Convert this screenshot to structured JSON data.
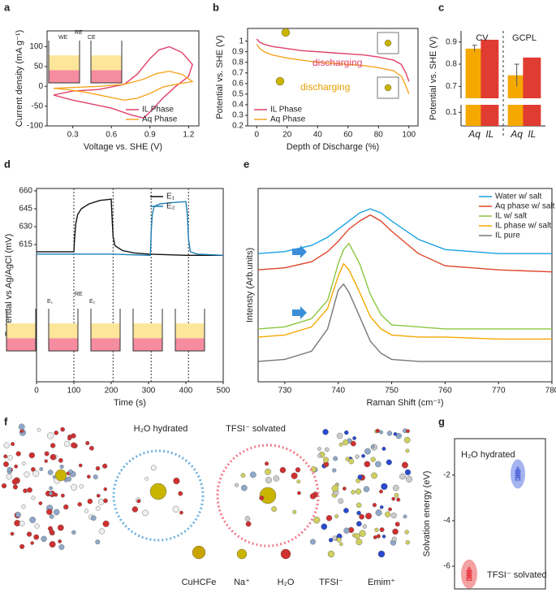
{
  "chart_data": [
    {
      "panel": "a",
      "type": "line",
      "xlabel": "Voltage vs. SHE (V)",
      "ylabel": "Current density (mA g⁻¹)",
      "xlim": [
        0.1,
        1.28
      ],
      "xticks": [
        0.3,
        0.6,
        0.9,
        1.2
      ],
      "ylim": [
        -100,
        140
      ],
      "yticks": [
        -100,
        -50,
        0,
        50,
        100
      ],
      "legend": "lower right",
      "annotations": [
        "WE",
        "RE",
        "CE"
      ],
      "series": [
        {
          "name": "IL Phase",
          "color": "#e0406a",
          "x": [
            0.15,
            0.3,
            0.5,
            0.7,
            0.8,
            0.9,
            0.97,
            1.05,
            1.15,
            1.23,
            1.2,
            1.1,
            1.0,
            0.9,
            0.85,
            0.75,
            0.6,
            0.45,
            0.3,
            0.15
          ],
          "values": [
            -22,
            -12,
            -8,
            5,
            30,
            70,
            92,
            100,
            85,
            55,
            25,
            0,
            -30,
            -65,
            -80,
            -72,
            -55,
            -45,
            -35,
            -22
          ]
        },
        {
          "name": "Aq Phase",
          "color": "#f5a623",
          "x": [
            0.15,
            0.3,
            0.5,
            0.7,
            0.85,
            0.95,
            1.05,
            1.15,
            1.23,
            1.1,
            1.0,
            0.9,
            0.8,
            0.7,
            0.55,
            0.4,
            0.25,
            0.15
          ],
          "values": [
            -5,
            -3,
            0,
            5,
            18,
            32,
            38,
            30,
            12,
            5,
            -2,
            -18,
            -30,
            -35,
            -25,
            -15,
            -8,
            -5
          ]
        }
      ]
    },
    {
      "panel": "b",
      "type": "line",
      "xlabel": "Depth of Discharge (%)",
      "ylabel": "Potential vs. SHE (V)",
      "xlim": [
        -6,
        106
      ],
      "xticks": [
        0,
        20,
        40,
        60,
        80,
        100
      ],
      "ylim": [
        0.2,
        1.12
      ],
      "yticks": [
        0.2,
        0.3,
        0.4,
        0.5,
        0.6,
        0.7,
        0.8,
        0.9,
        1.0
      ],
      "legend": "lower left",
      "annotations": [
        "discharging",
        "discharging"
      ],
      "x": [
        0,
        2,
        5,
        10,
        20,
        30,
        40,
        50,
        60,
        70,
        80,
        90,
        95,
        98,
        100
      ],
      "series": [
        {
          "name": "IL Phase",
          "color": "#e0406a",
          "values": [
            1.02,
            0.99,
            0.97,
            0.95,
            0.93,
            0.91,
            0.9,
            0.89,
            0.88,
            0.87,
            0.85,
            0.82,
            0.78,
            0.7,
            0.62
          ]
        },
        {
          "name": "Aq Phase",
          "color": "#f5a623",
          "values": [
            0.97,
            0.93,
            0.9,
            0.87,
            0.84,
            0.82,
            0.8,
            0.79,
            0.78,
            0.77,
            0.75,
            0.72,
            0.67,
            0.58,
            0.5
          ]
        }
      ]
    },
    {
      "panel": "c",
      "type": "bar",
      "ylabel": "Potential vs. SHE (V)",
      "groups": [
        "CV",
        "GCPL"
      ],
      "categories": [
        "Aq",
        "IL",
        "Aq",
        "IL"
      ],
      "values": [
        0.87,
        0.91,
        0.75,
        0.83
      ],
      "errors": [
        0.015,
        null,
        0.05,
        null
      ],
      "colors": [
        "#f5a800",
        "#e03c31",
        "#f5a800",
        "#e03c31"
      ],
      "ylim": [
        0,
        0.95
      ],
      "yticks": [
        0.1,
        0.7,
        0.8,
        0.9
      ],
      "axis_break": [
        0.15,
        0.65
      ]
    },
    {
      "panel": "d",
      "type": "line",
      "xlabel": "Time (s)",
      "ylabel": "Potential vs Ag/AgCl (mV)",
      "xlim": [
        0,
        500
      ],
      "xticks": [
        0,
        100,
        200,
        300,
        400,
        500
      ],
      "ylim": [
        500,
        662
      ],
      "yticks": [
        615,
        630,
        645,
        660
      ],
      "legend": "upper right",
      "event_times": [
        100,
        205,
        307,
        407
      ],
      "annotations": [
        "RE",
        "E₁",
        "E₂"
      ],
      "series": [
        {
          "name": "E₁",
          "color": "#111111",
          "x": [
            0,
            100,
            102,
            105,
            110,
            120,
            140,
            170,
            200,
            202,
            205,
            210,
            230,
            260,
            300,
            400,
            500
          ],
          "values": [
            609,
            609,
            620,
            632,
            640,
            645,
            649,
            652,
            653,
            640,
            622,
            614,
            610,
            608,
            607,
            606,
            606
          ]
        },
        {
          "name": "E₂",
          "color": "#1b7fb5",
          "x": [
            0,
            100,
            200,
            300,
            305,
            307,
            310,
            315,
            330,
            360,
            400,
            404,
            407,
            412,
            430,
            500
          ],
          "values": [
            607,
            607,
            607,
            606,
            606,
            625,
            640,
            647,
            649,
            650,
            651,
            640,
            620,
            609,
            607,
            606
          ]
        }
      ]
    },
    {
      "panel": "e",
      "type": "line",
      "xlabel": "Raman Shift (cm⁻¹)",
      "ylabel": "Intensty (Arb.units)",
      "xlim": [
        725,
        780
      ],
      "xticks": [
        730,
        740,
        750,
        760,
        770,
        780
      ],
      "ylim": [
        0,
        9.5
      ],
      "legend": "upper right",
      "x": [
        725,
        730,
        735,
        738,
        740,
        741,
        742,
        744,
        746,
        748,
        750,
        755,
        760,
        770,
        780
      ],
      "series": [
        {
          "name": "Water w/ salt",
          "color": "#1ba1e2",
          "values": [
            6.3,
            6.4,
            6.7,
            7.1,
            7.5,
            7.7,
            7.9,
            8.3,
            8.5,
            8.3,
            7.9,
            7.0,
            6.5,
            6.3,
            6.3
          ]
        },
        {
          "name": "Aq phase w/ salt",
          "color": "#e0452a",
          "values": [
            5.5,
            5.6,
            5.9,
            6.4,
            6.9,
            7.2,
            7.5,
            7.9,
            8.2,
            7.9,
            7.4,
            6.3,
            5.7,
            5.5,
            5.4
          ]
        },
        {
          "name": "IL w/ salt",
          "color": "#8cc63f",
          "values": [
            2.6,
            2.7,
            3.1,
            4.0,
            5.8,
            6.5,
            6.8,
            5.8,
            4.3,
            3.3,
            2.8,
            2.7,
            2.6,
            2.6,
            2.6
          ]
        },
        {
          "name": "IL phase w/ salt",
          "color": "#f5a800",
          "values": [
            2.2,
            2.3,
            2.7,
            3.6,
            5.2,
            5.8,
            5.5,
            4.4,
            3.2,
            2.6,
            2.3,
            2.2,
            2.2,
            2.1,
            2.1
          ]
        },
        {
          "name": "IL pure",
          "color": "#777777",
          "values": [
            1.0,
            1.1,
            1.5,
            2.6,
            4.5,
            4.8,
            4.4,
            3.2,
            2.0,
            1.4,
            1.1,
            1.0,
            1.0,
            1.0,
            1.0
          ]
        }
      ]
    },
    {
      "panel": "g",
      "type": "strip",
      "ylabel": "Solvation energy (eV)",
      "ylim": [
        -7,
        -0.4
      ],
      "yticks": [
        -6,
        -4,
        -2
      ],
      "series": [
        {
          "name": "H₂O hydrated",
          "color": "#4a5fd6",
          "values": [
            -1.75,
            -1.85,
            -1.95,
            -2.05,
            -2.15
          ]
        },
        {
          "name": "TFSI⁻ solvated",
          "color": "#e8323c",
          "values": [
            -6.15,
            -6.25,
            -6.35,
            -6.45,
            -6.55
          ]
        }
      ]
    }
  ],
  "diagram": {
    "panel": "f",
    "labels": [
      "H₂O hydrated",
      "TFSI⁻ solvated"
    ],
    "legend": [
      "CuHCFe",
      "Na⁺",
      "H₂O",
      "TFSI⁻",
      "Emim⁺"
    ]
  }
}
